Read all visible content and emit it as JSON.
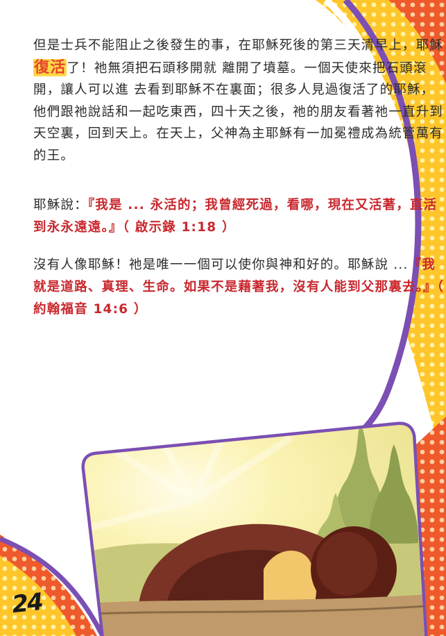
{
  "page": {
    "number": "24",
    "paragraphs": {
      "p1": {
        "before": "但是士兵不能阻止之後發生的事，在耶穌死後的第三天清早上，耶穌",
        "highlight": "復活",
        "after": "了！祂無須把石頭移開就 離開了墳墓。一個天使來把石頭滾開，讓人可以進 去看到耶穌不在裏面；很多人見過復活了的耶穌，他們跟祂說話和一起吃東西，四十天之後，祂的朋友看著祂一直升到天空裏，回到天上。在天上，父神為主耶穌有一加冕禮成為統管萬有的王。"
      },
      "p2": {
        "intro": "耶穌說：",
        "quote": "『我是 ... 永活的；我曾經死過，看哪，現在又活著，直活到永永遠遠。』",
        "reference": "（ 啟示錄 1:18 ）"
      },
      "p3": {
        "intro": "沒有人像耶穌！祂是唯一一個可以使你與神和好的。耶穌說 ...",
        "quote": "『我就是道路、真理、生命。如果不是藉著我，沒有人能到父那裏去。』",
        "reference": "（ 約翰福音 14:6 ）"
      }
    }
  },
  "colors": {
    "body_text": "#2b2b2b",
    "quote_red": "#c8282e",
    "highlight_bg": "#ffd84a",
    "frame_purple": "#7b4fb3",
    "dots_red": "#e8452a",
    "dots_yellow": "#ffc62b"
  }
}
